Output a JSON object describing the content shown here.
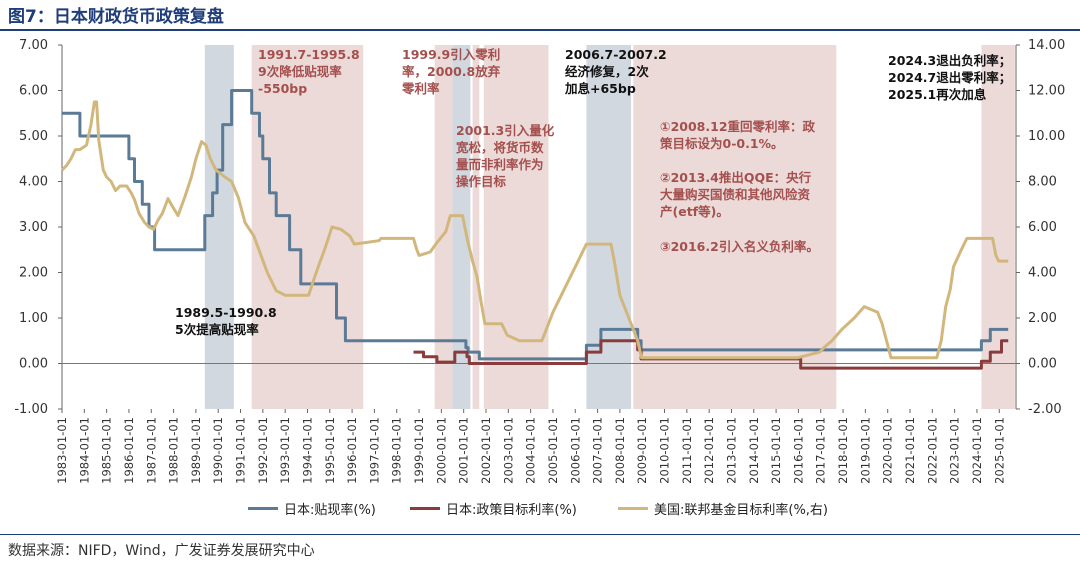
{
  "title": "图7：日本财政货币政策复盘",
  "source": "数据来源：NIFD，Wind，广发证券发展研究中心",
  "colors": {
    "discount": "#5b7a96",
    "policy": "#8a3b3b",
    "fed": "#d2b77c",
    "band_gray": "#c9d1da",
    "band_pink": "#e9d3d1"
  },
  "chart_data": {
    "type": "line",
    "title": "日本财政货币政策复盘",
    "y_left": {
      "min": -1,
      "max": 7,
      "ticks": [
        "-1.00",
        "0.00",
        "1.00",
        "2.00",
        "3.00",
        "4.00",
        "5.00",
        "6.00",
        "7.00"
      ]
    },
    "y_right": {
      "min": -2,
      "max": 14,
      "ticks": [
        "-2.00",
        "0.00",
        "2.00",
        "4.00",
        "6.00",
        "8.00",
        "10.00",
        "12.00",
        "14.00"
      ]
    },
    "x_range": [
      1983.0,
      2025.75
    ],
    "x_ticks": [
      "1983-01-01",
      "1984-01-01",
      "1985-01-01",
      "1986-01-01",
      "1987-01-01",
      "1988-01-01",
      "1989-01-01",
      "1990-01-01",
      "1991-01-01",
      "1992-01-01",
      "1993-01-01",
      "1994-01-01",
      "1995-01-01",
      "1996-01-01",
      "1997-01-01",
      "1998-01-01",
      "1999-01-01",
      "2000-01-01",
      "2001-01-01",
      "2002-01-01",
      "2003-01-01",
      "2004-01-01",
      "2005-01-01",
      "2006-01-01",
      "2007-01-01",
      "2008-01-01",
      "2009-01-01",
      "2010-01-01",
      "2011-01-01",
      "2012-01-01",
      "2013-01-01",
      "2014-01-01",
      "2015-01-01",
      "2016-01-01",
      "2017-01-01",
      "2018-01-01",
      "2019-01-01",
      "2020-01-01",
      "2021-01-01",
      "2022-01-01",
      "2023-01-01",
      "2024-01-01",
      "2025-01-01"
    ],
    "bands": [
      {
        "from": 1989.4,
        "to": 1990.7,
        "style": "gray"
      },
      {
        "from": 1991.5,
        "to": 1996.5,
        "style": "pink"
      },
      {
        "from": 1999.7,
        "to": 2000.5,
        "style": "pink"
      },
      {
        "from": 2000.5,
        "to": 2001.3,
        "style": "gray"
      },
      {
        "from": 2001.4,
        "to": 2001.7,
        "style": "pink"
      },
      {
        "from": 2001.9,
        "to": 2004.8,
        "style": "pink"
      },
      {
        "from": 2006.5,
        "to": 2008.5,
        "style": "gray"
      },
      {
        "from": 2008.6,
        "to": 2017.7,
        "style": "pink"
      },
      {
        "from": 2024.2,
        "to": 2025.7,
        "style": "pink"
      }
    ],
    "series": [
      {
        "name": "日本:贴现率(%)",
        "axis": "left",
        "color": "#5b7a96",
        "points": [
          [
            1983.0,
            5.5
          ],
          [
            1983.8,
            5.5
          ],
          [
            1983.8,
            5.0
          ],
          [
            1986.0,
            5.0
          ],
          [
            1986.0,
            4.5
          ],
          [
            1986.25,
            4.5
          ],
          [
            1986.25,
            4.0
          ],
          [
            1986.6,
            4.0
          ],
          [
            1986.6,
            3.5
          ],
          [
            1986.9,
            3.5
          ],
          [
            1986.9,
            3.0
          ],
          [
            1987.15,
            3.0
          ],
          [
            1987.15,
            2.5
          ],
          [
            1989.4,
            2.5
          ],
          [
            1989.4,
            3.25
          ],
          [
            1989.75,
            3.25
          ],
          [
            1989.75,
            3.75
          ],
          [
            1989.95,
            3.75
          ],
          [
            1989.95,
            4.25
          ],
          [
            1990.2,
            4.25
          ],
          [
            1990.2,
            5.25
          ],
          [
            1990.6,
            5.25
          ],
          [
            1990.6,
            6.0
          ],
          [
            1991.5,
            6.0
          ],
          [
            1991.5,
            5.5
          ],
          [
            1991.85,
            5.5
          ],
          [
            1991.85,
            5.0
          ],
          [
            1992.0,
            5.0
          ],
          [
            1992.0,
            4.5
          ],
          [
            1992.3,
            4.5
          ],
          [
            1992.3,
            3.75
          ],
          [
            1992.6,
            3.75
          ],
          [
            1992.6,
            3.25
          ],
          [
            1993.2,
            3.25
          ],
          [
            1993.2,
            2.5
          ],
          [
            1993.7,
            2.5
          ],
          [
            1993.7,
            1.75
          ],
          [
            1995.3,
            1.75
          ],
          [
            1995.3,
            1.0
          ],
          [
            1995.7,
            1.0
          ],
          [
            1995.7,
            0.5
          ],
          [
            2001.1,
            0.5
          ],
          [
            2001.1,
            0.35
          ],
          [
            2001.2,
            0.35
          ],
          [
            2001.2,
            0.25
          ],
          [
            2001.7,
            0.25
          ],
          [
            2001.7,
            0.1
          ],
          [
            2006.5,
            0.1
          ],
          [
            2006.5,
            0.4
          ],
          [
            2007.15,
            0.4
          ],
          [
            2007.15,
            0.75
          ],
          [
            2008.8,
            0.75
          ],
          [
            2008.8,
            0.5
          ],
          [
            2008.95,
            0.5
          ],
          [
            2008.95,
            0.3
          ],
          [
            2024.2,
            0.3
          ],
          [
            2024.2,
            0.5
          ],
          [
            2024.6,
            0.5
          ],
          [
            2024.6,
            0.75
          ],
          [
            2025.4,
            0.75
          ]
        ]
      },
      {
        "name": "日本:政策目标利率(%)",
        "axis": "left",
        "color": "#8a3b3b",
        "points": [
          [
            1998.75,
            0.25
          ],
          [
            1999.2,
            0.25
          ],
          [
            1999.2,
            0.15
          ],
          [
            1999.8,
            0.15
          ],
          [
            1999.8,
            0.03
          ],
          [
            2000.6,
            0.03
          ],
          [
            2000.6,
            0.25
          ],
          [
            2001.15,
            0.25
          ],
          [
            2001.15,
            0.15
          ],
          [
            2001.25,
            0.15
          ],
          [
            2001.25,
            0.0
          ],
          [
            2006.5,
            0.0
          ],
          [
            2006.5,
            0.25
          ],
          [
            2007.15,
            0.25
          ],
          [
            2007.15,
            0.5
          ],
          [
            2008.8,
            0.5
          ],
          [
            2008.8,
            0.3
          ],
          [
            2008.95,
            0.3
          ],
          [
            2008.95,
            0.1
          ],
          [
            2016.1,
            0.1
          ],
          [
            2016.1,
            -0.1
          ],
          [
            2024.2,
            -0.1
          ],
          [
            2024.2,
            0.05
          ],
          [
            2024.6,
            0.05
          ],
          [
            2024.6,
            0.25
          ],
          [
            2025.1,
            0.25
          ],
          [
            2025.1,
            0.5
          ],
          [
            2025.4,
            0.5
          ]
        ]
      },
      {
        "name": "美国:联邦基金目标利率(%,右)",
        "axis": "right",
        "color": "#d2b77c",
        "points": [
          [
            1983.0,
            8.5
          ],
          [
            1983.2,
            8.7
          ],
          [
            1983.4,
            9.0
          ],
          [
            1983.6,
            9.4
          ],
          [
            1983.8,
            9.4
          ],
          [
            1984.1,
            9.6
          ],
          [
            1984.3,
            10.5
          ],
          [
            1984.45,
            11.5
          ],
          [
            1984.55,
            11.5
          ],
          [
            1984.65,
            9.8
          ],
          [
            1984.85,
            8.5
          ],
          [
            1985.0,
            8.2
          ],
          [
            1985.2,
            8.0
          ],
          [
            1985.4,
            7.6
          ],
          [
            1985.6,
            7.8
          ],
          [
            1985.9,
            7.8
          ],
          [
            1986.1,
            7.5
          ],
          [
            1986.25,
            7.2
          ],
          [
            1986.45,
            6.6
          ],
          [
            1986.7,
            6.2
          ],
          [
            1986.9,
            6.0
          ],
          [
            1987.1,
            5.9
          ],
          [
            1987.3,
            6.3
          ],
          [
            1987.5,
            6.6
          ],
          [
            1987.75,
            7.25
          ],
          [
            1987.95,
            6.9
          ],
          [
            1988.2,
            6.5
          ],
          [
            1988.5,
            7.3
          ],
          [
            1988.8,
            8.2
          ],
          [
            1989.0,
            9.0
          ],
          [
            1989.25,
            9.75
          ],
          [
            1989.45,
            9.6
          ],
          [
            1989.65,
            9.0
          ],
          [
            1989.9,
            8.5
          ],
          [
            1990.3,
            8.2
          ],
          [
            1990.6,
            8.0
          ],
          [
            1990.9,
            7.3
          ],
          [
            1991.2,
            6.2
          ],
          [
            1991.6,
            5.6
          ],
          [
            1991.9,
            4.8
          ],
          [
            1992.2,
            4.0
          ],
          [
            1992.6,
            3.2
          ],
          [
            1993.0,
            3.0
          ],
          [
            1994.05,
            3.0
          ],
          [
            1994.25,
            3.6
          ],
          [
            1994.5,
            4.3
          ],
          [
            1994.8,
            5.1
          ],
          [
            1995.0,
            5.7
          ],
          [
            1995.1,
            6.0
          ],
          [
            1995.5,
            5.9
          ],
          [
            1995.9,
            5.6
          ],
          [
            1996.1,
            5.25
          ],
          [
            1997.2,
            5.4
          ],
          [
            1997.3,
            5.5
          ],
          [
            1998.75,
            5.5
          ],
          [
            1998.9,
            5.0
          ],
          [
            1999.0,
            4.75
          ],
          [
            1999.5,
            4.9
          ],
          [
            1999.75,
            5.25
          ],
          [
            2000.2,
            5.8
          ],
          [
            2000.4,
            6.5
          ],
          [
            2000.95,
            6.5
          ],
          [
            2001.05,
            6.0
          ],
          [
            2001.2,
            5.3
          ],
          [
            2001.4,
            4.5
          ],
          [
            2001.6,
            3.8
          ],
          [
            2001.8,
            2.6
          ],
          [
            2001.95,
            1.75
          ],
          [
            2002.7,
            1.75
          ],
          [
            2002.95,
            1.25
          ],
          [
            2003.5,
            1.0
          ],
          [
            2004.5,
            1.0
          ],
          [
            2004.7,
            1.5
          ],
          [
            2005.0,
            2.25
          ],
          [
            2005.5,
            3.25
          ],
          [
            2006.0,
            4.25
          ],
          [
            2006.5,
            5.25
          ],
          [
            2007.6,
            5.25
          ],
          [
            2007.75,
            4.5
          ],
          [
            2008.0,
            3.0
          ],
          [
            2008.3,
            2.25
          ],
          [
            2008.8,
            1.0
          ],
          [
            2008.97,
            0.25
          ],
          [
            2015.95,
            0.25
          ],
          [
            2016.95,
            0.5
          ],
          [
            2017.2,
            0.75
          ],
          [
            2017.5,
            1.0
          ],
          [
            2017.95,
            1.5
          ],
          [
            2018.5,
            2.0
          ],
          [
            2018.95,
            2.5
          ],
          [
            2019.55,
            2.25
          ],
          [
            2019.75,
            1.75
          ],
          [
            2020.15,
            0.25
          ],
          [
            2022.2,
            0.25
          ],
          [
            2022.4,
            1.0
          ],
          [
            2022.6,
            2.5
          ],
          [
            2022.8,
            3.25
          ],
          [
            2022.95,
            4.25
          ],
          [
            2023.3,
            5.0
          ],
          [
            2023.55,
            5.5
          ],
          [
            2024.7,
            5.5
          ],
          [
            2024.85,
            4.75
          ],
          [
            2024.97,
            4.5
          ],
          [
            2025.4,
            4.5
          ]
        ]
      }
    ],
    "annotations": [
      {
        "text": "1991.7-1995.8\n9次降低贴现率\n-550bp",
        "style": "red"
      },
      {
        "text": "1999.9引入零利\n率，2000.8放弃\n零利率",
        "style": "mix"
      },
      {
        "text": "2001.3引入量化\n宽松，将货币数\n量而非利率作为\n操作目标",
        "style": "red"
      },
      {
        "text": "2006.7-2007.2\n经济修复，2次\n加息+65bp",
        "style": "black"
      },
      {
        "text": "①2008.12重回零利率：政\n策目标设为0-0.1%。",
        "style": "red"
      },
      {
        "text": "②2013.4推出QQE：央行\n大量购买国债和其他风险资\n产(etf等)。",
        "style": "red"
      },
      {
        "text": "③2016.2引入名义负利率。",
        "style": "red"
      },
      {
        "text": "2024.3退出负利率；\n2024.7退出零利率；\n2025.1再次加息",
        "style": "black"
      },
      {
        "text": "1989.5-1990.8\n5次提高贴现率",
        "style": "black"
      }
    ]
  }
}
